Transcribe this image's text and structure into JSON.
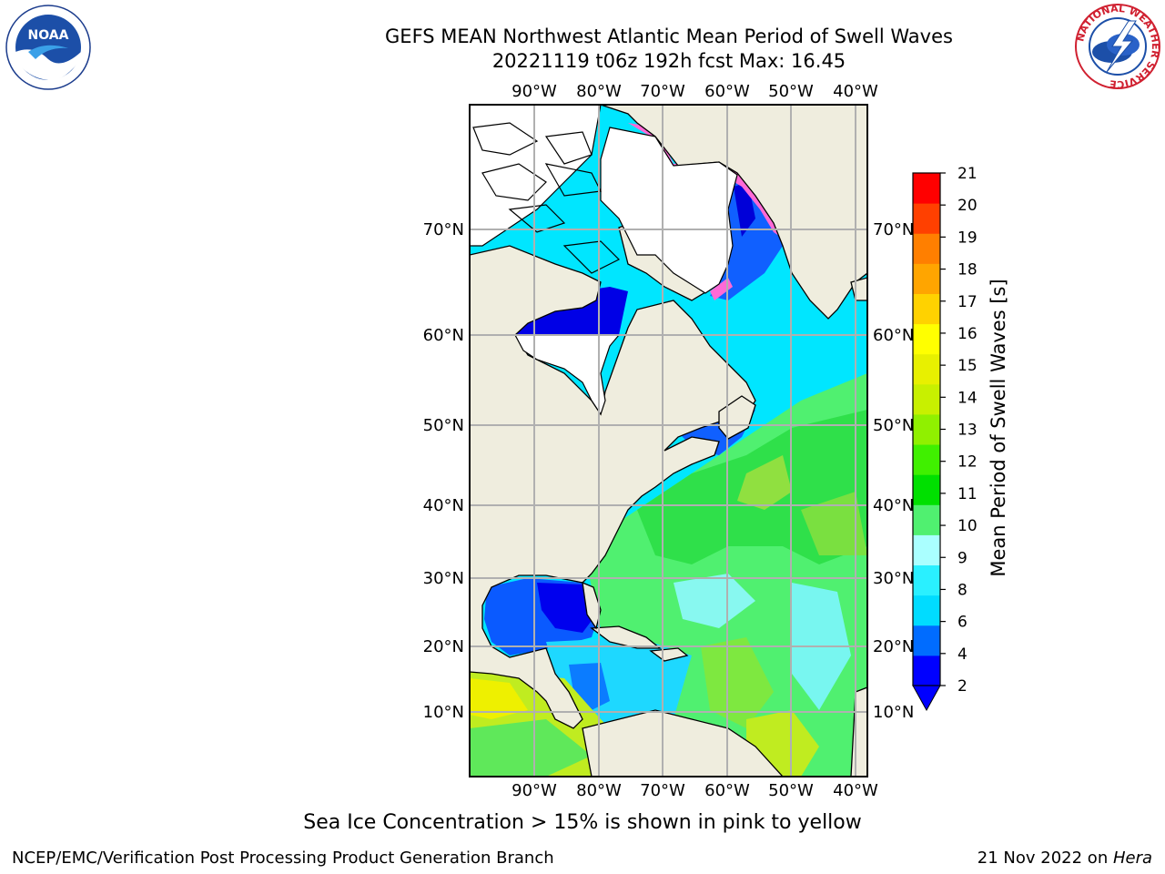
{
  "title": {
    "line1": "GEFS MEAN Northwest Atlantic Mean Period of Swell Waves",
    "line2": "20221119 t06z 192h fcst   Max: 16.45"
  },
  "map": {
    "lon_labels": [
      "90°W",
      "80°W",
      "70°W",
      "60°W",
      "50°W",
      "40°W"
    ],
    "lat_labels": [
      "70°N",
      "60°N",
      "50°N",
      "40°N",
      "30°N",
      "20°N",
      "10°N"
    ],
    "land_color": "#efedde",
    "grid_color": "#b0b0b0"
  },
  "colorbar": {
    "label": "Mean Period of Swell Waves [s]",
    "ticks": [
      "2",
      "4",
      "6",
      "8",
      "9",
      "10",
      "11",
      "12",
      "13",
      "14",
      "15",
      "16",
      "17",
      "18",
      "19",
      "20",
      "21"
    ],
    "colors": [
      "#0000ff",
      "#006cff",
      "#00dcff",
      "#2af0ff",
      "#aaffff",
      "#50f070",
      "#00e000",
      "#40f000",
      "#90f000",
      "#c8f000",
      "#e8f000",
      "#ffff00",
      "#ffd200",
      "#ffa500",
      "#ff7f00",
      "#ff4000",
      "#ff0000"
    ],
    "extend_color": "#0000ff"
  },
  "caption": "Sea Ice Concentration > 15% is shown in pink to yellow",
  "footer": {
    "left": "NCEP/EMC/Verification Post Processing Product Generation Branch",
    "right_date": "21 Nov 2022 on ",
    "right_host": "Hera"
  },
  "logos": {
    "noaa": "NOAA",
    "nws": "NATIONAL WEATHER SERVICE"
  }
}
